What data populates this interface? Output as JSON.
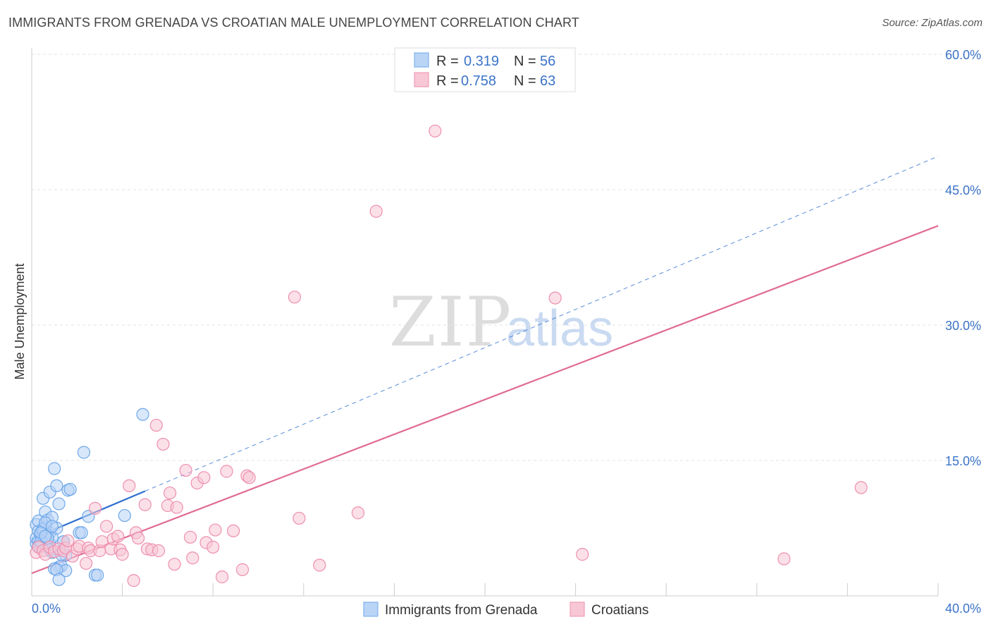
{
  "title": "IMMIGRANTS FROM GRENADA VS CROATIAN MALE UNEMPLOYMENT CORRELATION CHART",
  "source": "Source: ZipAtlas.com",
  "watermark": {
    "zip": "ZIP",
    "atlas": "atlas"
  },
  "chart_data": {
    "type": "scatter",
    "ylabel": "Male Unemployment",
    "xlim": [
      0,
      40
    ],
    "ylim": [
      0,
      60
    ],
    "x_tick_labels": [
      "0.0%",
      "40.0%"
    ],
    "y_ticks": [
      15,
      30,
      45,
      60
    ],
    "y_tick_labels": [
      "15.0%",
      "30.0%",
      "45.0%",
      "60.0%"
    ],
    "legend": {
      "r_label": "R =",
      "n_label": "N =",
      "entries": [
        {
          "name": "Immigrants from Grenada",
          "r": "0.319",
          "n": "56",
          "color": "#6ea8ea",
          "fill": "#b9d4f5"
        },
        {
          "name": "Croatians",
          "r": "0.758",
          "n": "63",
          "color": "#ee8fae",
          "fill": "#f8c7d6"
        }
      ]
    },
    "series": [
      {
        "name": "Immigrants from Grenada",
        "color": "#6ea8ea",
        "trend_solid": {
          "x": [
            0.0,
            5.0
          ],
          "y": [
            6.3,
            11.6
          ]
        },
        "trend_dashed": {
          "x": [
            5.0,
            40.0
          ],
          "y": [
            11.6,
            48.7
          ]
        },
        "trend_color": "#2f6fd0",
        "x": [
          0.2,
          0.2,
          0.2,
          0.3,
          0.3,
          0.3,
          0.4,
          0.4,
          0.5,
          0.5,
          0.5,
          0.6,
          0.6,
          0.6,
          0.7,
          0.7,
          0.8,
          0.8,
          0.8,
          0.9,
          0.9,
          1.0,
          1.0,
          1.1,
          1.1,
          1.2,
          1.2,
          1.3,
          1.4,
          1.5,
          1.5,
          1.6,
          1.7,
          2.1,
          2.2,
          2.3,
          2.5,
          2.8,
          2.9,
          4.1,
          4.9,
          0.3,
          0.4,
          0.5,
          0.6,
          0.7,
          0.8,
          0.9,
          1.0,
          1.1,
          1.2,
          1.3,
          0.4,
          0.6,
          0.9,
          1.4
        ],
        "y": [
          5.8,
          6.4,
          7.9,
          6.1,
          7.2,
          8.3,
          5.5,
          6.8,
          5.6,
          7.1,
          10.8,
          6.9,
          7.6,
          9.3,
          6.2,
          8.4,
          5.8,
          7.0,
          11.5,
          6.5,
          8.7,
          4.9,
          14.1,
          7.5,
          12.2,
          10.2,
          3.2,
          3.3,
          6.0,
          4.5,
          2.8,
          11.7,
          11.8,
          7.0,
          7.0,
          15.9,
          8.8,
          2.3,
          2.3,
          8.9,
          20.1,
          5.5,
          6.0,
          7.4,
          8.1,
          6.4,
          5.1,
          4.8,
          3.0,
          2.9,
          1.8,
          4.6,
          7.0,
          6.6,
          7.7,
          6.0
        ]
      },
      {
        "name": "Croatians",
        "color": "#ee8fae",
        "trend_solid": {
          "x": [
            0.0,
            40.0
          ],
          "y": [
            2.5,
            41.0
          ]
        },
        "trend_color": "#e06b95",
        "x": [
          0.2,
          0.3,
          0.5,
          0.6,
          0.8,
          1.0,
          1.2,
          1.4,
          1.5,
          1.6,
          1.8,
          2.0,
          2.1,
          2.4,
          2.5,
          2.6,
          2.8,
          3.0,
          3.1,
          3.3,
          3.5,
          3.6,
          3.8,
          3.9,
          4.0,
          4.3,
          4.5,
          4.6,
          4.7,
          5.0,
          5.1,
          5.3,
          5.5,
          5.6,
          5.8,
          6.0,
          6.1,
          6.3,
          6.4,
          6.8,
          7.0,
          7.1,
          7.3,
          7.6,
          7.7,
          8.0,
          8.1,
          8.4,
          8.6,
          8.9,
          9.3,
          9.5,
          9.6,
          11.6,
          11.8,
          12.7,
          14.4,
          15.2,
          17.8,
          23.1,
          24.3,
          33.2,
          36.6
        ],
        "y": [
          4.8,
          5.4,
          5.0,
          4.6,
          5.4,
          4.9,
          5.2,
          5.0,
          5.3,
          6.1,
          4.4,
          5.2,
          5.5,
          3.6,
          5.3,
          5.0,
          9.7,
          5.0,
          6.0,
          7.7,
          5.2,
          6.3,
          6.6,
          5.1,
          4.6,
          12.2,
          1.7,
          7.0,
          6.4,
          10.1,
          5.2,
          5.1,
          18.9,
          5.0,
          16.8,
          10.0,
          11.4,
          3.5,
          9.8,
          13.9,
          6.5,
          4.2,
          12.5,
          13.1,
          5.9,
          5.4,
          7.3,
          2.1,
          13.8,
          7.2,
          2.9,
          13.3,
          13.1,
          33.1,
          8.6,
          3.4,
          9.2,
          42.6,
          51.5,
          33.0,
          4.6,
          4.1,
          12.0
        ]
      }
    ]
  }
}
